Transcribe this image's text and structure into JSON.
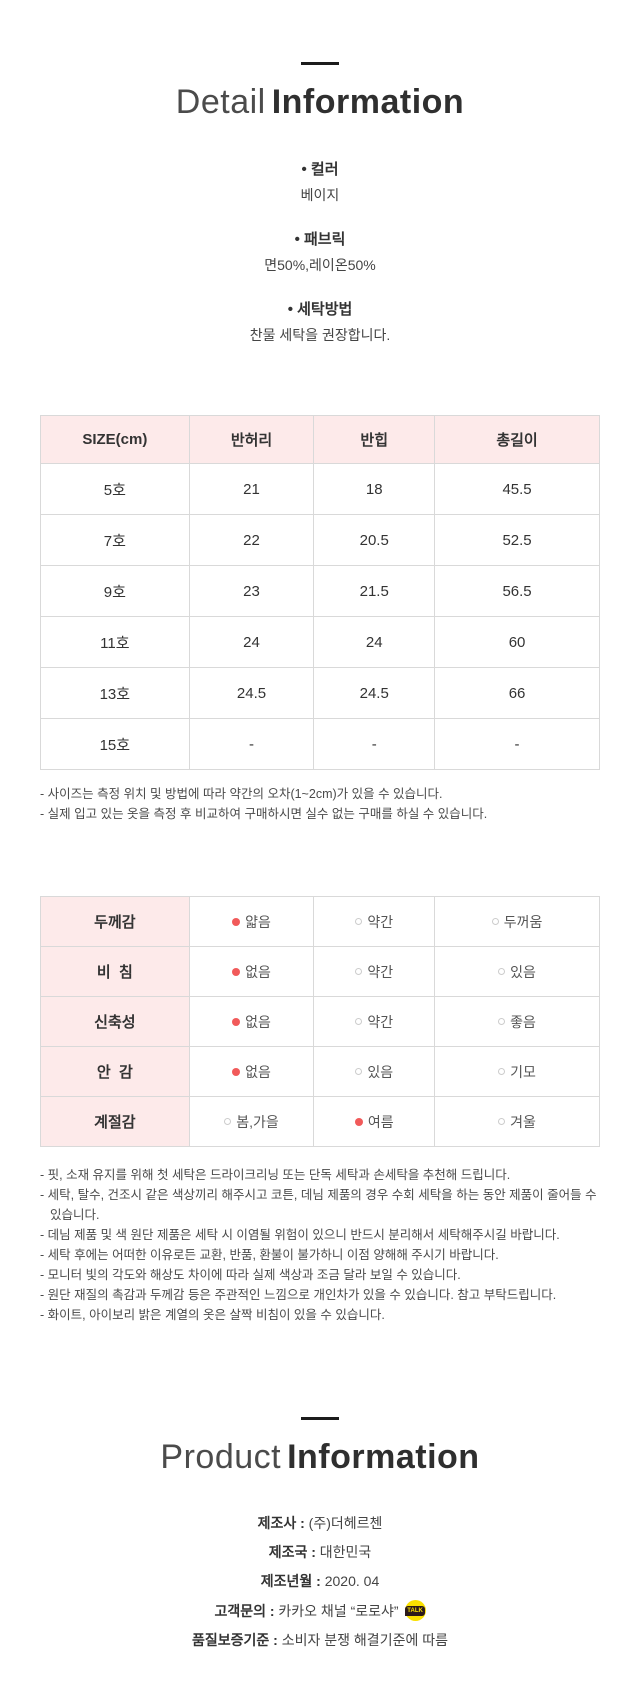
{
  "colors": {
    "table_header_pink": "#fdeaea",
    "selected_dot_red": "#f15a5a",
    "kakao_yellow": "#fae100",
    "table_border": "#d9d9d9",
    "title_rule_black": "#1c1c1c"
  },
  "detail_section": {
    "title_light": "Detail",
    "title_bold": "Information",
    "bullet": "•",
    "specs": [
      {
        "label": "컬러",
        "value": "베이지"
      },
      {
        "label": "패브릭",
        "value": "면50%,레이온50%"
      },
      {
        "label": "세탁방법",
        "value": "찬물 세탁을 권장합니다."
      }
    ]
  },
  "size_table": {
    "headers": [
      "SIZE(cm)",
      "반허리",
      "반힙",
      "총길이"
    ],
    "rows": [
      [
        "5호",
        "21",
        "18",
        "45.5"
      ],
      [
        "7호",
        "22",
        "20.5",
        "52.5"
      ],
      [
        "9호",
        "23",
        "21.5",
        "56.5"
      ],
      [
        "11호",
        "24",
        "24",
        "60"
      ],
      [
        "13호",
        "24.5",
        "24.5",
        "66"
      ],
      [
        "15호",
        "-",
        "-",
        "-"
      ]
    ],
    "notes": [
      "- 사이즈는 측정 위치 및 방법에 따라 약간의 오차(1~2cm)가 있을 수 있습니다.",
      "- 실제 입고 있는 옷을 측정 후 비교하여 구매하시면 실수 없는 구매를 하실 수 있습니다."
    ]
  },
  "attribute_table": {
    "rows": [
      {
        "label": "두께감",
        "options": [
          {
            "text": "얇음",
            "selected": true
          },
          {
            "text": "약간",
            "selected": false
          },
          {
            "text": "두꺼움",
            "selected": false
          }
        ]
      },
      {
        "label": "비  침",
        "options": [
          {
            "text": "없음",
            "selected": true
          },
          {
            "text": "약간",
            "selected": false
          },
          {
            "text": "있음",
            "selected": false
          }
        ]
      },
      {
        "label": "신축성",
        "options": [
          {
            "text": "없음",
            "selected": true
          },
          {
            "text": "약간",
            "selected": false
          },
          {
            "text": "좋음",
            "selected": false
          }
        ]
      },
      {
        "label": "안  감",
        "options": [
          {
            "text": "없음",
            "selected": true
          },
          {
            "text": "있음",
            "selected": false
          },
          {
            "text": "기모",
            "selected": false
          }
        ]
      },
      {
        "label": "계절감",
        "options": [
          {
            "text": "봄,가을",
            "selected": false
          },
          {
            "text": "여름",
            "selected": true
          },
          {
            "text": "겨울",
            "selected": false
          }
        ]
      }
    ]
  },
  "care_notes": [
    "- 핏, 소재 유지를 위해 첫 세탁은 드라이크리닝 또는 단독 세탁과 손세탁을 추천해 드립니다.",
    "- 세탁, 탈수, 건조시 같은 색상끼리 해주시고 코튼, 데님 제품의 경우 수회 세탁을 하는 동안 제품이 줄어들 수 있습니다.",
    "- 데님 제품 및 색 원단 제품은 세탁 시 이염될 위험이 있으니 반드시 분리해서 세탁해주시길 바랍니다.",
    "- 세탁 후에는 어떠한 이유로든 교환, 반품, 환불이 불가하니 이점 양해해 주시기 바랍니다.",
    "- 모니터 빛의 각도와 해상도 차이에 따라 실제 색상과 조금 달라 보일 수 있습니다.",
    "- 원단 재질의 촉감과 두께감 등은 주관적인 느낌으로 개인차가 있을 수 있습니다. 참고 부탁드립니다.",
    "- 화이트, 아이보리 밝은 계열의 옷은 살짝 비침이 있을 수 있습니다."
  ],
  "product_section": {
    "title_light": "Product",
    "title_bold": "Information",
    "separator": " : ",
    "kakao_icon_text": "TALK",
    "fields": [
      {
        "label": "제조사",
        "value": "(주)더헤르첸"
      },
      {
        "label": "제조국",
        "value": "대한민국"
      },
      {
        "label": "제조년월",
        "value": "2020. 04"
      },
      {
        "label": "고객문의",
        "value": "카카오 채널 “로로샤”",
        "icon": "kakao"
      },
      {
        "label": "품질보증기준",
        "value": "소비자 분쟁 해결기준에 따름"
      }
    ]
  }
}
